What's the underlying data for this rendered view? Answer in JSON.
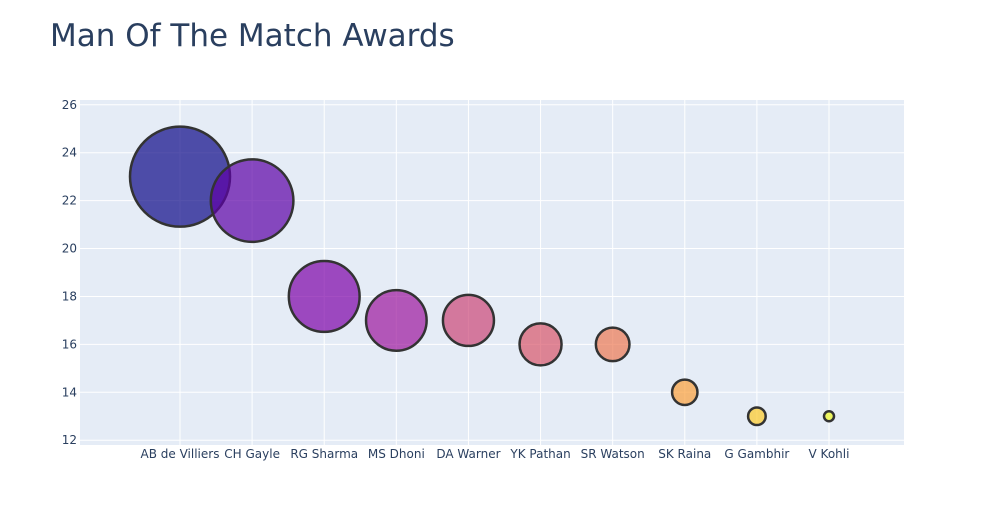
{
  "chart_data": {
    "type": "scatter",
    "title": "Man Of The Match Awards",
    "xlabel": "",
    "ylabel": "",
    "categories": [
      "AB de Villiers",
      "CH Gayle",
      "RG Sharma",
      "MS Dhoni",
      "DA Warner",
      "YK Pathan",
      "SR Watson",
      "SK Raina",
      "G Gambhir",
      "V Kohli"
    ],
    "values": [
      23,
      22,
      18,
      17,
      17,
      16,
      16,
      14,
      13,
      13
    ],
    "ylim": [
      11.8,
      26.2
    ],
    "yticks": [
      12,
      14,
      16,
      18,
      20,
      22,
      24,
      26
    ],
    "grid": true,
    "legend": "none",
    "colors": [
      "#0d0887",
      "#5c01a6",
      "#7e03a8",
      "#9c179e",
      "#cc4778",
      "#d8576b",
      "#ed7953",
      "#fb9f3a",
      "#fdca26",
      "#f0f921"
    ],
    "plot_bg": "#e5ecf6",
    "marker_line_color": "#333333"
  }
}
